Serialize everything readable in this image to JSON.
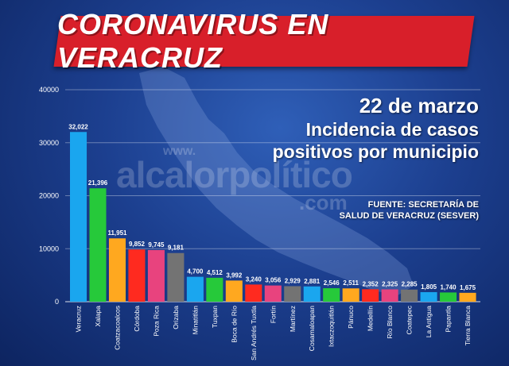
{
  "header": {
    "banner_title": "CORONAVIRUS EN VERACRUZ",
    "date": "22 de marzo",
    "subtitle_line1": "Incidencia de casos",
    "subtitle_line2": "positivos por municipio",
    "source_line1": "FUENTE: SECRETARÍA DE",
    "source_line2": "SALUD DE VERACRUZ (SESVER)"
  },
  "watermark": {
    "www": "www.",
    "brand": "alcalorpolítico",
    "com": ".com"
  },
  "colors": {
    "banner": "#d81f2a",
    "background": "#1c3f8f"
  },
  "chart_data": {
    "type": "bar",
    "title": "Incidencia de casos positivos por municipio",
    "ylim": [
      0,
      40000
    ],
    "yticks": [
      0,
      10000,
      20000,
      30000,
      40000
    ],
    "grid": true,
    "categories": [
      "Veracruz",
      "Xalapa",
      "Coatzacoalcos",
      "Córdoba",
      "Poza Rica",
      "Orizaba",
      "Minatitlán",
      "Tuxpan",
      "Boca de Río",
      "San Andrés Tuxtla",
      "Fortín",
      "Martínez",
      "Cosamaloapan",
      "Ixtaczoquitlán",
      "Pánuco",
      "Medellín",
      "Río Blanco",
      "Coatepec",
      "La Antigua",
      "Papantla",
      "Tierra Blanca"
    ],
    "values": [
      32022,
      21396,
      11951,
      9852,
      9745,
      9181,
      4700,
      4512,
      3992,
      3240,
      3056,
      2929,
      2881,
      2546,
      2511,
      2352,
      2325,
      2285,
      1805,
      1740,
      1675
    ],
    "value_labels": [
      "32,022",
      "21,396",
      "11,951",
      "9,852",
      "9,745",
      "9,181",
      "4,700",
      "4,512",
      "3,992",
      "3,240",
      "3,056",
      "2,929",
      "2,881",
      "2,546",
      "2,511",
      "2,352",
      "2,325",
      "2,285",
      "1,805",
      "1,740",
      "1,675"
    ],
    "bar_colors": [
      "#1aa6ef",
      "#26c93a",
      "#ffa81f",
      "#ff2a1f",
      "#e8437e",
      "#737373",
      "#1aa6ef",
      "#26c93a",
      "#ffa81f",
      "#ff2a1f",
      "#e8437e",
      "#737373",
      "#1aa6ef",
      "#26c93a",
      "#ffa81f",
      "#ff2a1f",
      "#e8437e",
      "#737373",
      "#1aa6ef",
      "#26c93a",
      "#ffa81f"
    ]
  }
}
